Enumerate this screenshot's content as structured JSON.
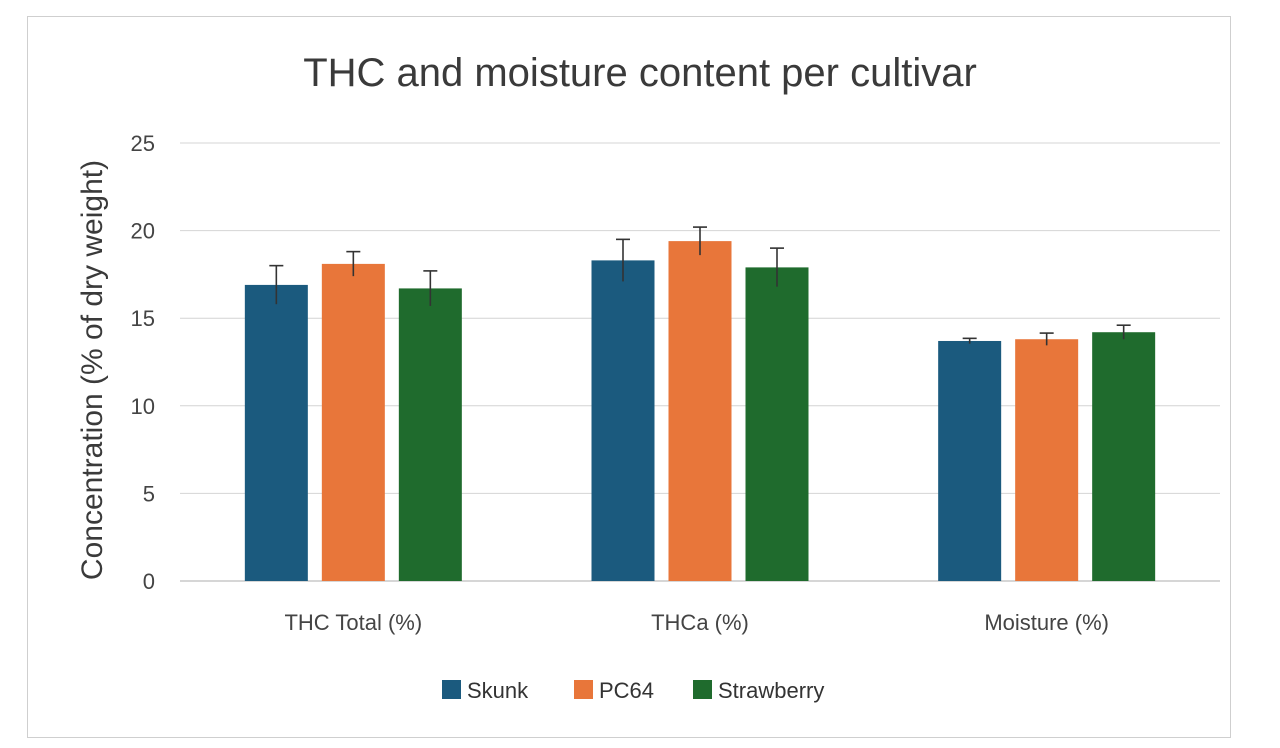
{
  "chart_data": {
    "type": "bar",
    "title": "THC and moisture content per cultivar",
    "xlabel": "",
    "ylabel": "Concentration (% of dry weight)",
    "ylim": [
      0,
      25
    ],
    "yticks": [
      0,
      5,
      10,
      15,
      20,
      25
    ],
    "grid": true,
    "legend_position": "bottom",
    "categories": [
      "THC Total (%)",
      "THCa (%)",
      "Moisture (%)"
    ],
    "series": [
      {
        "name": "Skunk",
        "color": "#1b5a7e",
        "values": [
          16.9,
          18.3,
          13.7
        ],
        "errors": [
          1.1,
          1.2,
          0.15
        ]
      },
      {
        "name": "PC64",
        "color": "#e8763a",
        "values": [
          18.1,
          19.4,
          13.8
        ],
        "errors": [
          0.7,
          0.8,
          0.35
        ]
      },
      {
        "name": "Strawberry",
        "color": "#1f6b2d",
        "values": [
          16.7,
          17.9,
          14.2
        ],
        "errors": [
          1.0,
          1.1,
          0.4
        ]
      }
    ]
  }
}
